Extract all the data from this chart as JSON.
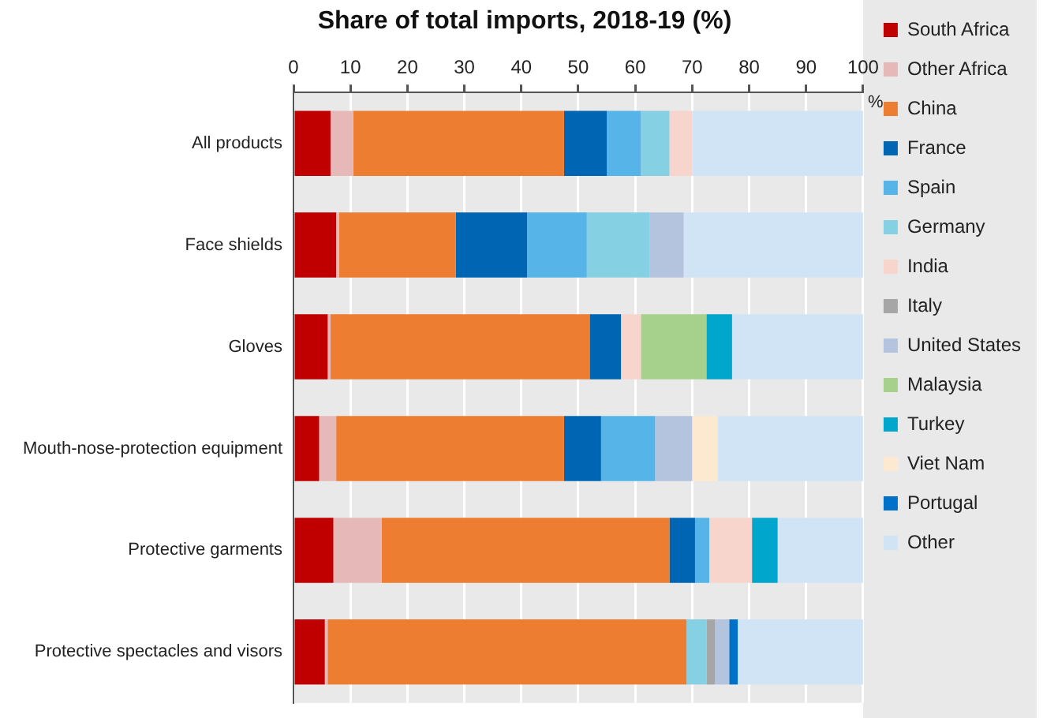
{
  "chart_data": {
    "type": "bar",
    "orientation": "horizontal",
    "stacked": true,
    "title": "Share of total imports, 2018-19 (%)",
    "xlabel": "%",
    "categories": [
      "All products",
      "Face shields",
      "Gloves",
      "Mouth-nose-protection equipment",
      "Protective garments",
      "Protective spectacles and visors"
    ],
    "series": [
      {
        "name": "South Africa",
        "color": "#c00000",
        "values": [
          6.5,
          7.5,
          6,
          4.5,
          7,
          5.5
        ]
      },
      {
        "name": "Other Africa",
        "color": "#e6b8b8",
        "values": [
          4,
          0.5,
          0.5,
          3,
          8.5,
          0.5
        ]
      },
      {
        "name": "China",
        "color": "#ed7d31",
        "values": [
          37,
          20.5,
          45.5,
          40,
          50.5,
          63
        ]
      },
      {
        "name": "France",
        "color": "#0066b3",
        "values": [
          7.5,
          12.5,
          5.5,
          6.5,
          4.5,
          0
        ]
      },
      {
        "name": "Spain",
        "color": "#56b4e9",
        "values": [
          6,
          10.5,
          0,
          9.5,
          2.5,
          0
        ]
      },
      {
        "name": "Germany",
        "color": "#85d0e3",
        "values": [
          5,
          11,
          0,
          0,
          0,
          3.5
        ]
      },
      {
        "name": "India",
        "color": "#f8d5cc",
        "values": [
          4,
          0,
          3.5,
          0,
          7.5,
          0
        ]
      },
      {
        "name": "Italy",
        "color": "#a6a6a6",
        "values": [
          0,
          0,
          0,
          0,
          0,
          1.5
        ]
      },
      {
        "name": "United States",
        "color": "#b4c3de",
        "values": [
          0,
          6,
          0,
          6.5,
          0,
          2.5
        ]
      },
      {
        "name": "Malaysia",
        "color": "#a6d18c",
        "values": [
          0,
          0,
          11.5,
          0,
          0,
          0
        ]
      },
      {
        "name": "Turkey",
        "color": "#00a6cc",
        "values": [
          0,
          0,
          4.5,
          0,
          4.5,
          0
        ]
      },
      {
        "name": "Viet Nam",
        "color": "#fde9d0",
        "values": [
          0,
          0,
          0,
          4.5,
          0,
          0
        ]
      },
      {
        "name": "Portugal",
        "color": "#0070c8",
        "values": [
          0,
          0,
          0,
          0,
          0,
          1.5
        ]
      },
      {
        "name": "Other",
        "color": "#d0e4f5",
        "values": [
          30,
          31.5,
          23,
          25.5,
          15,
          22
        ]
      }
    ],
    "xlim": [
      0,
      100
    ],
    "xticks": [
      0,
      10,
      20,
      30,
      40,
      50,
      60,
      70,
      80,
      90,
      100
    ],
    "grid": "x",
    "legend": "right"
  }
}
